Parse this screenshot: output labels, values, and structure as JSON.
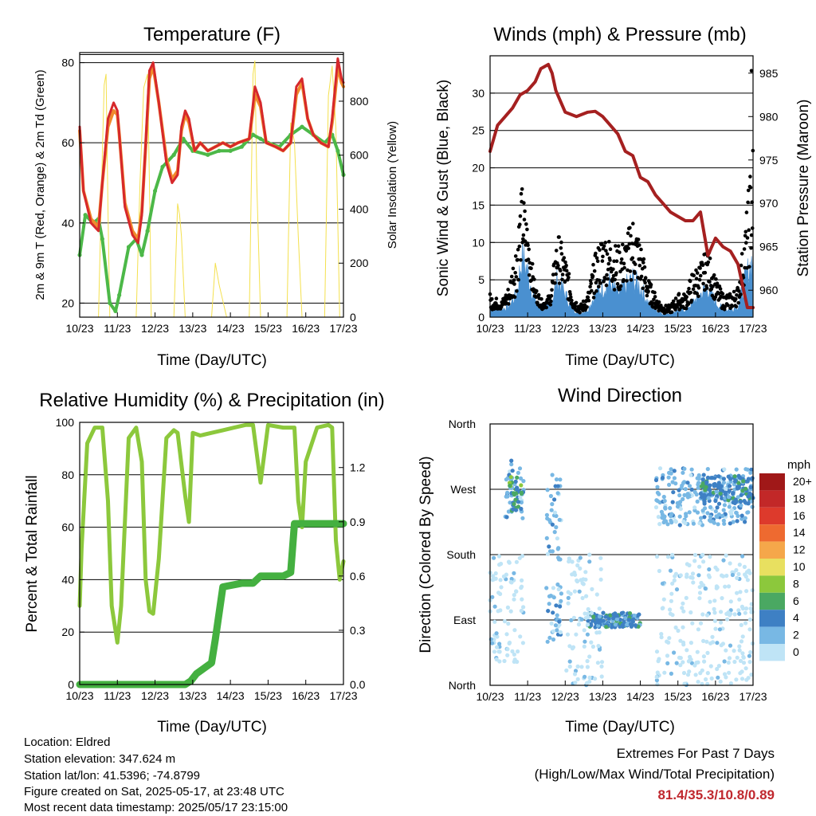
{
  "charts": {
    "temperature": {
      "title": "Temperature (F)",
      "xlabel": "Time (Day/UTC)",
      "ylabel_left": "2m & 9m T (Red, Orange) & 2m Td (Green)",
      "ylabel_right": "Solar Insolation (Yellow)"
    },
    "winds": {
      "title": "Winds (mph) & Pressure (mb)",
      "xlabel": "Time (Day/UTC)",
      "ylabel_left": "Sonic Wind & Gust (Blue, Black)",
      "ylabel_right": "Station Pressure (Maroon)"
    },
    "humidity": {
      "title": "Relative Humidity (%) & Precipitation (in)",
      "xlabel": "Time (Day/UTC)",
      "ylabel_left": "Percent & Total Rainfall"
    },
    "direction": {
      "title": "Wind Direction",
      "xlabel": "Time (Day/UTC)",
      "ylabel_left": "Direction (Colored By Speed)",
      "legend_unit": "mph"
    }
  },
  "info": {
    "location": "Location: Eldred",
    "elevation": "Station elevation: 347.624 m",
    "latlon": "Station lat/lon: 41.5396; -74.8799",
    "created": "Figure created on Sat, 2025-05-17, at 23:48 UTC",
    "latest": "Most recent data timestamp: 2025/05/17 23:15:00"
  },
  "extremes": {
    "heading": "Extremes For Past 7 Days",
    "subheading": "(High/Low/Max Wind/Total Precipitation)",
    "values": "81.4/35.3/10.8/0.89"
  },
  "chart_data": [
    {
      "type": "line",
      "name": "temperature",
      "x_ticks": [
        "10/23",
        "11/23",
        "12/23",
        "13/23",
        "14/23",
        "15/23",
        "16/23",
        "17/23"
      ],
      "x_range": [
        0,
        7
      ],
      "y_left_ticks": [
        20,
        40,
        60,
        80
      ],
      "y_left_range": [
        16.5,
        82.5
      ],
      "y_right_ticks": [
        0,
        200,
        400,
        600,
        800
      ],
      "y_right_range": [
        0,
        980
      ],
      "colors": {
        "t2m": "#d6282b",
        "t9m": "#f08a2c",
        "td": "#4cb848",
        "solar": "#f4e04d"
      },
      "series": [
        {
          "key": "t2m",
          "x": [
            0,
            0.1,
            0.3,
            0.5,
            0.6,
            0.75,
            0.9,
            1.0,
            1.05,
            1.2,
            1.4,
            1.55,
            1.65,
            1.75,
            1.85,
            1.95,
            2.1,
            2.3,
            2.45,
            2.6,
            2.7,
            2.8,
            2.9,
            3.05,
            3.2,
            3.4,
            3.6,
            3.8,
            4.0,
            4.2,
            4.5,
            4.65,
            4.8,
            4.95,
            5.2,
            5.4,
            5.6,
            5.75,
            5.9,
            6.05,
            6.2,
            6.4,
            6.6,
            6.7,
            6.85,
            6.95,
            7.0
          ],
          "y": [
            64,
            48,
            40,
            38,
            50,
            66,
            70,
            68,
            62,
            44,
            37,
            35,
            42,
            60,
            78,
            80,
            70,
            55,
            50,
            52,
            64,
            68,
            66,
            58,
            60,
            58,
            59,
            60,
            59,
            60,
            61,
            74,
            70,
            60,
            59,
            58,
            60,
            74,
            76,
            66,
            62,
            60,
            59,
            66,
            81,
            76,
            75
          ]
        },
        {
          "key": "t9m",
          "x": [
            0,
            0.1,
            0.3,
            0.5,
            0.6,
            0.75,
            0.9,
            1.0,
            1.05,
            1.2,
            1.4,
            1.55,
            1.65,
            1.75,
            1.85,
            1.95,
            2.1,
            2.3,
            2.45,
            2.6,
            2.7,
            2.8,
            2.9,
            3.05,
            3.2,
            3.4,
            3.6,
            3.8,
            4.0,
            4.2,
            4.5,
            4.65,
            4.8,
            4.95,
            5.2,
            5.4,
            5.6,
            5.75,
            5.9,
            6.05,
            6.2,
            6.4,
            6.6,
            6.7,
            6.85,
            6.95,
            7.0
          ],
          "y": [
            63,
            48,
            41,
            39,
            50,
            64,
            68,
            67,
            62,
            45,
            38,
            36,
            43,
            59,
            76,
            79,
            70,
            56,
            51,
            53,
            63,
            67,
            65,
            58,
            60,
            58,
            59,
            60,
            59,
            60,
            61,
            72,
            69,
            60,
            59,
            58,
            60,
            72,
            75,
            66,
            62,
            60,
            59,
            65,
            79,
            75,
            74
          ]
        },
        {
          "key": "td",
          "x": [
            0,
            0.15,
            0.35,
            0.5,
            0.6,
            0.8,
            0.95,
            1.05,
            1.3,
            1.5,
            1.65,
            1.8,
            2.0,
            2.2,
            2.5,
            2.75,
            3.0,
            3.4,
            3.7,
            4.0,
            4.3,
            4.6,
            4.8,
            5.0,
            5.3,
            5.6,
            5.9,
            6.2,
            6.5,
            6.7,
            6.85,
            7.0
          ],
          "y": [
            32,
            42,
            40,
            41,
            36,
            20,
            18,
            22,
            34,
            36,
            32,
            38,
            48,
            54,
            57,
            61,
            58,
            57,
            58,
            58,
            59,
            62,
            61,
            60,
            59,
            62,
            64,
            62,
            60,
            62,
            58,
            52
          ]
        },
        {
          "key": "solar",
          "x": [
            0.5,
            0.6,
            0.65,
            0.7,
            0.75,
            0.8,
            1.5,
            1.6,
            1.7,
            1.8,
            1.85,
            1.9,
            2.5,
            2.6,
            2.65,
            2.7,
            2.8,
            3.5,
            3.6,
            3.7,
            3.8,
            3.9,
            4.5,
            4.6,
            4.65,
            4.7,
            4.8,
            5.5,
            5.6,
            5.7,
            5.8,
            5.9,
            6.5,
            6.6,
            6.7,
            6.8,
            6.9
          ],
          "y": [
            0,
            600,
            860,
            900,
            400,
            0,
            0,
            500,
            850,
            900,
            500,
            0,
            0,
            420,
            380,
            300,
            0,
            0,
            200,
            120,
            60,
            0,
            0,
            900,
            950,
            500,
            0,
            0,
            720,
            650,
            300,
            0,
            0,
            820,
            930,
            700,
            0
          ]
        }
      ]
    },
    {
      "type": "scatter",
      "name": "winds",
      "x_ticks": [
        "10/23",
        "11/23",
        "12/23",
        "13/23",
        "14/23",
        "15/23",
        "16/23",
        "17/23"
      ],
      "x_range": [
        0,
        7
      ],
      "y_left_ticks": [
        0,
        5,
        10,
        15,
        20,
        25,
        30
      ],
      "y_left_range": [
        0,
        35
      ],
      "y_right_ticks": [
        960,
        965,
        970,
        975,
        980,
        985
      ],
      "y_right_range": [
        956.9,
        987
      ],
      "colors": {
        "wind": "#4a90d0",
        "gust": "#000000",
        "pressure": "#a52020"
      },
      "series": [
        {
          "key": "pressure",
          "x": [
            0,
            0.2,
            0.4,
            0.6,
            0.8,
            1.0,
            1.2,
            1.35,
            1.55,
            1.65,
            1.75,
            2.0,
            2.3,
            2.6,
            2.8,
            3.0,
            3.2,
            3.4,
            3.6,
            3.8,
            4.0,
            4.2,
            4.4,
            4.6,
            4.8,
            5.0,
            5.2,
            5.4,
            5.6,
            5.8,
            6.0,
            6.2,
            6.4,
            6.6,
            6.75,
            6.85,
            7.0
          ],
          "y": [
            976,
            979,
            980,
            981,
            982.5,
            983,
            984,
            985.5,
            986,
            985,
            983,
            980.5,
            980,
            980.5,
            980.6,
            980,
            979,
            978,
            976,
            975.5,
            973,
            972.5,
            971,
            970,
            969,
            968.5,
            968,
            968,
            969,
            964,
            966,
            965,
            964.5,
            963,
            960,
            958,
            958
          ]
        },
        {
          "key": "wind",
          "x": [
            0,
            0.3,
            0.5,
            0.7,
            0.85,
            1.0,
            1.2,
            1.4,
            1.6,
            1.8,
            2.0,
            2.2,
            2.4,
            2.6,
            2.8,
            3.0,
            3.2,
            3.4,
            3.6,
            3.8,
            4.0,
            4.2,
            4.4,
            4.6,
            4.8,
            5.0,
            5.2,
            5.4,
            5.6,
            5.8,
            6.0,
            6.2,
            6.4,
            6.6,
            6.8,
            7.0
          ],
          "y": [
            1,
            1,
            1.5,
            3,
            8,
            6,
            2,
            1,
            1.5,
            5,
            3,
            1,
            0.5,
            1,
            3,
            4,
            4.5,
            3,
            4,
            5,
            4,
            2,
            1,
            0.5,
            0.5,
            1,
            1,
            2,
            3,
            4,
            2,
            1,
            1,
            1.5,
            5,
            8
          ]
        },
        {
          "key": "gust",
          "x": [
            0,
            0.3,
            0.5,
            0.7,
            0.85,
            1.0,
            1.2,
            1.4,
            1.6,
            1.8,
            2.0,
            2.2,
            2.4,
            2.6,
            2.8,
            3.0,
            3.2,
            3.4,
            3.6,
            3.8,
            4.0,
            4.2,
            4.4,
            4.6,
            4.8,
            5.0,
            5.2,
            5.4,
            5.6,
            5.8,
            6.0,
            6.2,
            6.4,
            6.6,
            6.8,
            7.0
          ],
          "y": [
            3,
            2,
            4,
            10,
            17,
            12,
            4,
            2,
            3,
            11,
            8,
            3,
            1.5,
            3,
            8,
            11,
            10,
            9,
            10,
            13,
            10,
            5,
            3,
            1.5,
            1.5,
            3,
            3,
            6,
            7,
            9,
            5,
            3,
            3,
            4,
            12,
            23
          ]
        }
      ]
    },
    {
      "type": "line",
      "name": "humidity",
      "x_ticks": [
        "10/23",
        "11/23",
        "12/23",
        "13/23",
        "14/23",
        "15/23",
        "16/23",
        "17/23"
      ],
      "x_range": [
        0,
        7
      ],
      "y_left_ticks": [
        0,
        20,
        40,
        60,
        80,
        100
      ],
      "y_left_range": [
        0,
        100
      ],
      "y_right_ticks": [
        "0.0",
        "0.3",
        "0.6",
        "0.9",
        "1.2"
      ],
      "y_right_range": [
        0,
        1.45
      ],
      "colors": {
        "rh": "#8cc83c",
        "precip": "#44b040"
      },
      "series": [
        {
          "key": "rh",
          "x": [
            0,
            0.05,
            0.2,
            0.4,
            0.6,
            0.75,
            0.85,
            1.0,
            1.1,
            1.3,
            1.5,
            1.65,
            1.75,
            1.85,
            1.95,
            2.1,
            2.3,
            2.5,
            2.6,
            2.8,
            2.9,
            3.0,
            3.2,
            3.5,
            3.8,
            4.1,
            4.4,
            4.6,
            4.8,
            5.0,
            5.4,
            5.7,
            5.8,
            5.9,
            6.0,
            6.3,
            6.6,
            6.7,
            6.8,
            6.9,
            7.0
          ],
          "y": [
            30,
            52,
            92,
            98,
            98,
            70,
            30,
            16,
            30,
            94,
            98,
            85,
            40,
            28,
            27,
            48,
            94,
            97,
            96,
            72,
            62,
            96,
            95,
            96,
            97,
            98,
            99,
            99,
            77,
            99,
            98,
            98,
            70,
            60,
            85,
            98,
            99,
            98,
            55,
            40,
            47
          ]
        },
        {
          "key": "precip",
          "x": [
            0,
            2.8,
            2.95,
            3.1,
            3.3,
            3.5,
            3.6,
            3.8,
            4.3,
            4.6,
            4.8,
            5.4,
            5.6,
            5.7,
            6.1,
            6.8,
            7.0
          ],
          "y": [
            0,
            0,
            0.02,
            0.06,
            0.09,
            0.12,
            0.25,
            0.54,
            0.56,
            0.56,
            0.6,
            0.6,
            0.62,
            0.89,
            0.89,
            0.89,
            0.89
          ]
        }
      ]
    },
    {
      "type": "scatter",
      "name": "direction",
      "x_ticks": [
        "10/23",
        "11/23",
        "12/23",
        "13/23",
        "14/23",
        "15/23",
        "16/23",
        "17/23"
      ],
      "x_range": [
        0,
        7
      ],
      "y_ticks": [
        "North",
        "East",
        "South",
        "West",
        "North"
      ],
      "y_range": [
        0,
        360
      ],
      "legend": {
        "labels": [
          "20+",
          "18",
          "16",
          "14",
          "12",
          "10",
          "8",
          "6",
          "4",
          "2",
          "0"
        ],
        "colors": [
          "#a01818",
          "#c22828",
          "#dd3a2c",
          "#ee6a30",
          "#f5a74a",
          "#e8e060",
          "#8cc83c",
          "#4aa862",
          "#3e80c4",
          "#78b8e4",
          "#bfe4f6"
        ]
      },
      "clusters": [
        {
          "x": [
            0.0,
            0.9
          ],
          "y": [
            30,
            180
          ],
          "speed": 0
        },
        {
          "x": [
            0.4,
            0.9
          ],
          "y": [
            230,
            310
          ],
          "speed": 2
        },
        {
          "x": [
            0.5,
            0.85
          ],
          "y": [
            240,
            290
          ],
          "speed": 6
        },
        {
          "x": [
            1.5,
            1.9
          ],
          "y": [
            170,
            290
          ],
          "speed": 2
        },
        {
          "x": [
            1.5,
            1.9
          ],
          "y": [
            60,
            140
          ],
          "speed": 2
        },
        {
          "x": [
            2.6,
            4.0
          ],
          "y": [
            80,
            100
          ],
          "speed": 4
        },
        {
          "x": [
            2.0,
            3.0
          ],
          "y": [
            0,
            180
          ],
          "speed": 0
        },
        {
          "x": [
            4.4,
            7.0
          ],
          "y": [
            220,
            300
          ],
          "speed": 2
        },
        {
          "x": [
            4.4,
            7.0
          ],
          "y": [
            0,
            180
          ],
          "speed": 0
        },
        {
          "x": [
            5.6,
            7.0
          ],
          "y": [
            250,
            290
          ],
          "speed": 4
        }
      ]
    }
  ]
}
